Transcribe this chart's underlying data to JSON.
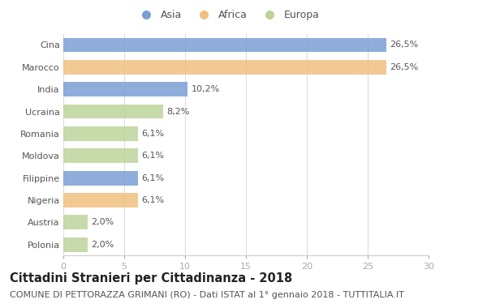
{
  "categories": [
    "Cina",
    "Marocco",
    "India",
    "Ucraina",
    "Romania",
    "Moldova",
    "Filippine",
    "Nigeria",
    "Austria",
    "Polonia"
  ],
  "values": [
    26.5,
    26.5,
    10.2,
    8.2,
    6.1,
    6.1,
    6.1,
    6.1,
    2.0,
    2.0
  ],
  "colors": [
    "#7b9fd4",
    "#f0c080",
    "#7b9fd4",
    "#bdd49a",
    "#bdd49a",
    "#bdd49a",
    "#7b9fd4",
    "#f0c080",
    "#bdd49a",
    "#bdd49a"
  ],
  "labels": [
    "26,5%",
    "26,5%",
    "10,2%",
    "8,2%",
    "6,1%",
    "6,1%",
    "6,1%",
    "6,1%",
    "2,0%",
    "2,0%"
  ],
  "xlim": [
    0,
    30
  ],
  "xticks": [
    0,
    5,
    10,
    15,
    20,
    25,
    30
  ],
  "title": "Cittadini Stranieri per Cittadinanza - 2018",
  "subtitle": "COMUNE DI PETTORAZZA GRIMANI (RO) - Dati ISTAT al 1° gennaio 2018 - TUTTITALIA.IT",
  "legend_labels": [
    "Asia",
    "Africa",
    "Europa"
  ],
  "legend_colors": [
    "#7b9fd4",
    "#f0c080",
    "#bdd49a"
  ],
  "bg_color": "#ffffff",
  "bar_height": 0.65,
  "title_fontsize": 10.5,
  "subtitle_fontsize": 8.0,
  "label_fontsize": 8.0,
  "tick_fontsize": 8.0,
  "legend_fontsize": 9.0
}
